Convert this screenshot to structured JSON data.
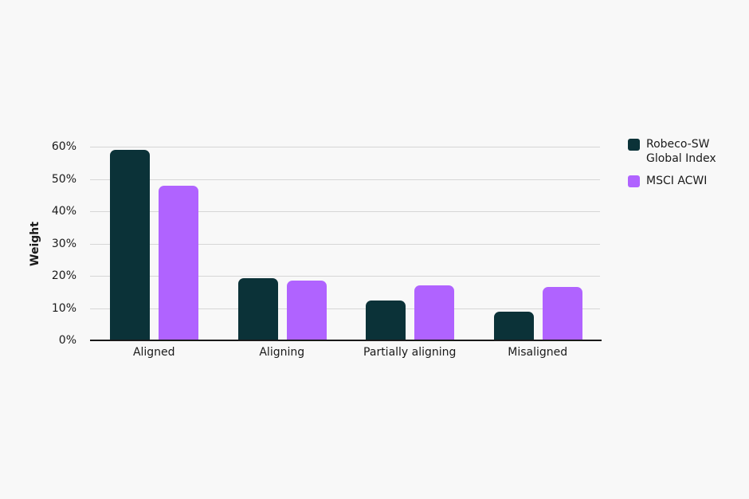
{
  "chart_data": {
    "type": "bar",
    "title": "",
    "xlabel": "",
    "ylabel": "Weight",
    "ylim": [
      0,
      60
    ],
    "yticks": [
      "0%",
      "10%",
      "20%",
      "30%",
      "40%",
      "50%",
      "60%"
    ],
    "grid": true,
    "legend_position": "right",
    "categories": [
      "Aligned",
      "Aligning",
      "Partially aligning",
      "Misaligned"
    ],
    "series": [
      {
        "name": "Robeco-SW Global Index",
        "color": "#0b3238",
        "values": [
          59,
          19.3,
          12.4,
          8.9
        ]
      },
      {
        "name": "MSCI ACWI",
        "color": "#b063ff",
        "values": [
          47.9,
          18.6,
          17,
          16.5
        ]
      }
    ]
  },
  "legend": {
    "items": [
      {
        "label": "Robeco-SW Global Index",
        "color": "#0b3238"
      },
      {
        "label": "MSCI ACWI",
        "color": "#b063ff"
      }
    ]
  }
}
